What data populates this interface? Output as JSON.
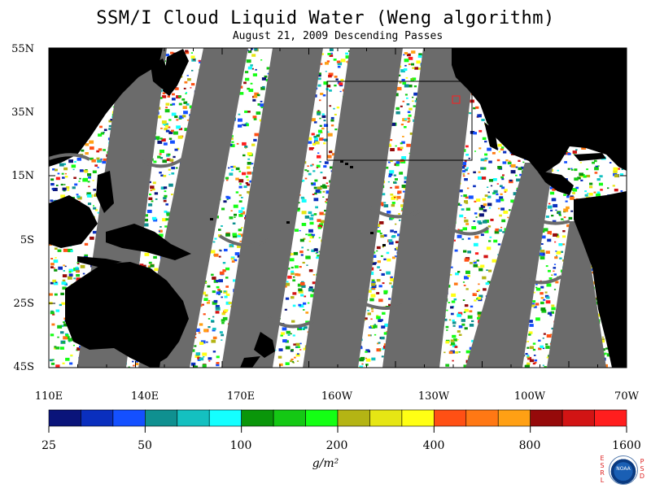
{
  "header": {
    "title": "SSM/I Cloud Liquid Water (Weng algorithm)",
    "subtitle": "August 21, 2009  Descending Passes"
  },
  "map": {
    "latitude_labels": [
      "55N",
      "35N",
      "15N",
      "5S",
      "25S",
      "45S"
    ],
    "longitude_labels": [
      "110E",
      "140E",
      "170E",
      "160W",
      "130W",
      "100W",
      "70W"
    ],
    "land_color": "#000000",
    "no_data_color": "#6b6b6b",
    "background_color": "#ffffff"
  },
  "colorbar": {
    "colors": [
      "#0a147a",
      "#0a2fbe",
      "#1450ff",
      "#0f9090",
      "#14c0c0",
      "#14ffff",
      "#0a960a",
      "#14c814",
      "#14ff14",
      "#b4b414",
      "#e6e614",
      "#ffff14",
      "#ff5014",
      "#ff7814",
      "#ffa014",
      "#960a0a",
      "#d21414",
      "#ff1e1e"
    ],
    "tick_labels": [
      "25",
      "50",
      "100",
      "200",
      "400",
      "800",
      "1600"
    ],
    "units": "g/m²"
  },
  "logo": {
    "left_letters": [
      "E",
      "S",
      "R",
      "L"
    ],
    "right_letters": [
      "P",
      "S",
      "D"
    ],
    "name": "NOAA"
  }
}
